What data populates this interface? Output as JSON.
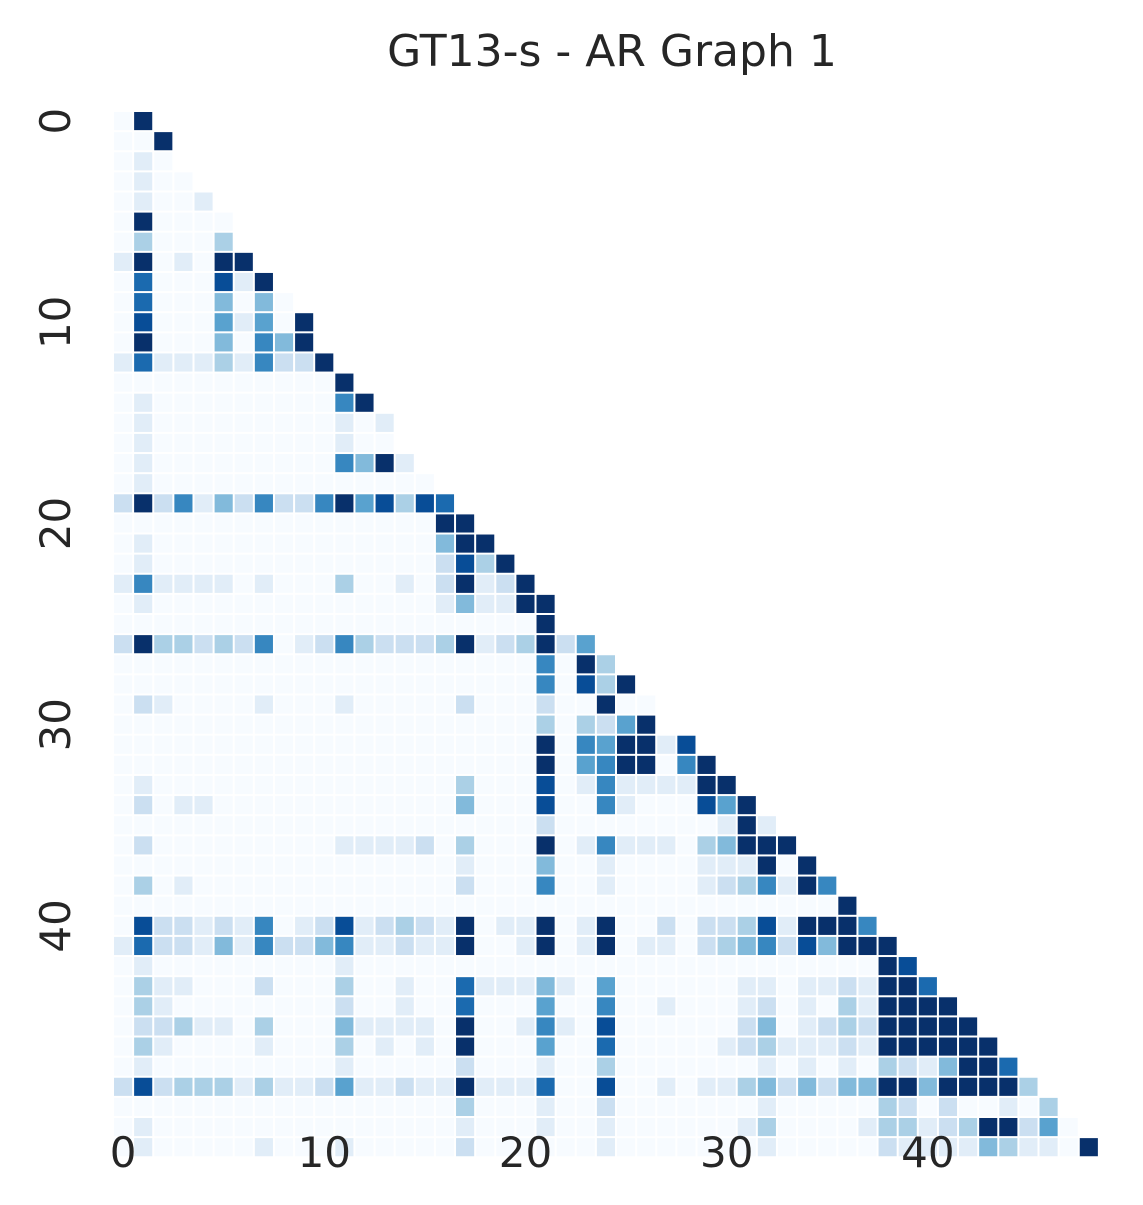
{
  "chart_data": {
    "type": "heatmap",
    "title": "GT13-s - AR Graph 1",
    "xlabel": "",
    "ylabel": "",
    "size": 49,
    "mask": "lower-triangle-including-diagonal",
    "colormap": "Blues",
    "value_range": [
      0,
      1
    ],
    "colorbar": false,
    "x_ticks": [
      0,
      10,
      20,
      30,
      40
    ],
    "y_ticks": [
      0,
      10,
      20,
      30,
      40
    ],
    "rows": [
      [
        0,
        9
      ],
      [
        0,
        0,
        9
      ],
      [
        0,
        1,
        0
      ],
      [
        0,
        1,
        0,
        0
      ],
      [
        0,
        1,
        0,
        0,
        1
      ],
      [
        0,
        9,
        0,
        0,
        0,
        0
      ],
      [
        0,
        3,
        0,
        0,
        0,
        3
      ],
      [
        1,
        9,
        0,
        1,
        0,
        9,
        9
      ],
      [
        0,
        7,
        0,
        0,
        0,
        8,
        1,
        9
      ],
      [
        0,
        7,
        0,
        0,
        0,
        4,
        0,
        4,
        0
      ],
      [
        0,
        8,
        0,
        0,
        0,
        5,
        1,
        5,
        0,
        9
      ],
      [
        0,
        9,
        0,
        0,
        0,
        4,
        0,
        6,
        4,
        9
      ],
      [
        1,
        7,
        1,
        1,
        1,
        3,
        1,
        6,
        2,
        2,
        9
      ],
      [
        0,
        0,
        0,
        0,
        0,
        0,
        0,
        0,
        0,
        0,
        0,
        9
      ],
      [
        0,
        1,
        0,
        0,
        0,
        0,
        0,
        0,
        0,
        0,
        0,
        6,
        9
      ],
      [
        0,
        1,
        0,
        0,
        0,
        0,
        0,
        0,
        0,
        0,
        0,
        1,
        0,
        1
      ],
      [
        0,
        1,
        0,
        0,
        0,
        0,
        0,
        0,
        0,
        0,
        0,
        1,
        0,
        0
      ],
      [
        0,
        1,
        0,
        0,
        0,
        0,
        0,
        0,
        0,
        0,
        0,
        6,
        4,
        9,
        1
      ],
      [
        0,
        1,
        0,
        0,
        0,
        0,
        0,
        0,
        0,
        0,
        0,
        0,
        0,
        0,
        0,
        0
      ],
      [
        2,
        9,
        2,
        6,
        1,
        4,
        2,
        6,
        2,
        2,
        6,
        9,
        5,
        8,
        3,
        8,
        7
      ],
      [
        0,
        0,
        0,
        0,
        0,
        0,
        0,
        0,
        0,
        0,
        0,
        0,
        0,
        0,
        0,
        0,
        9,
        9
      ],
      [
        0,
        1,
        0,
        0,
        0,
        0,
        0,
        0,
        0,
        0,
        0,
        0,
        0,
        0,
        0,
        0,
        4,
        9,
        9
      ],
      [
        0,
        1,
        0,
        0,
        0,
        0,
        0,
        0,
        0,
        0,
        0,
        0,
        0,
        0,
        0,
        0,
        2,
        8,
        3,
        9
      ],
      [
        1,
        6,
        1,
        1,
        1,
        1,
        0,
        1,
        0,
        0,
        0,
        3,
        0,
        0,
        1,
        0,
        2,
        9,
        1,
        2,
        9
      ],
      [
        0,
        1,
        0,
        0,
        0,
        0,
        0,
        0,
        0,
        0,
        0,
        0,
        0,
        0,
        0,
        0,
        1,
        4,
        1,
        1,
        9,
        9
      ],
      [
        0,
        0,
        0,
        0,
        0,
        0,
        0,
        0,
        0,
        0,
        0,
        0,
        0,
        0,
        0,
        0,
        0,
        0,
        0,
        0,
        0,
        9
      ],
      [
        2,
        9,
        3,
        3,
        2,
        3,
        2,
        6,
        0,
        1,
        2,
        6,
        3,
        2,
        2,
        2,
        3,
        9,
        1,
        2,
        3,
        9,
        2,
        5
      ],
      [
        0,
        0,
        0,
        0,
        0,
        0,
        0,
        0,
        0,
        0,
        0,
        0,
        0,
        0,
        0,
        0,
        0,
        0,
        0,
        0,
        0,
        6,
        0,
        9,
        3
      ],
      [
        0,
        0,
        0,
        0,
        0,
        0,
        0,
        0,
        0,
        0,
        0,
        0,
        0,
        0,
        0,
        0,
        0,
        0,
        0,
        0,
        0,
        6,
        0,
        8,
        3,
        9
      ],
      [
        0,
        2,
        1,
        0,
        0,
        0,
        0,
        1,
        0,
        0,
        0,
        1,
        0,
        0,
        0,
        0,
        0,
        2,
        0,
        0,
        0,
        2,
        0,
        0,
        9,
        0,
        0
      ],
      [
        0,
        0,
        0,
        0,
        0,
        0,
        0,
        0,
        0,
        0,
        0,
        0,
        0,
        0,
        0,
        0,
        0,
        0,
        0,
        0,
        0,
        3,
        0,
        3,
        2,
        5,
        9
      ],
      [
        0,
        0,
        0,
        0,
        0,
        0,
        0,
        0,
        0,
        0,
        0,
        0,
        0,
        0,
        0,
        0,
        0,
        0,
        0,
        0,
        0,
        9,
        0,
        6,
        5,
        9,
        9,
        1,
        8
      ],
      [
        0,
        0,
        0,
        0,
        0,
        0,
        0,
        0,
        0,
        0,
        0,
        0,
        0,
        0,
        0,
        0,
        0,
        0,
        0,
        0,
        0,
        9,
        0,
        5,
        6,
        9,
        9,
        0,
        6,
        9
      ],
      [
        0,
        1,
        0,
        0,
        0,
        0,
        0,
        0,
        0,
        0,
        0,
        0,
        0,
        0,
        0,
        0,
        0,
        3,
        0,
        0,
        0,
        8,
        0,
        1,
        6,
        1,
        1,
        1,
        1,
        9,
        9
      ],
      [
        0,
        2,
        0,
        1,
        1,
        0,
        0,
        0,
        0,
        0,
        0,
        0,
        0,
        0,
        0,
        0,
        0,
        4,
        0,
        0,
        0,
        8,
        0,
        0,
        6,
        1,
        0,
        0,
        0,
        8,
        5,
        9
      ],
      [
        0,
        0,
        0,
        0,
        0,
        0,
        0,
        0,
        0,
        0,
        0,
        0,
        0,
        0,
        0,
        0,
        0,
        0,
        0,
        0,
        0,
        2,
        0,
        0,
        0,
        0,
        0,
        0,
        0,
        0,
        1,
        9,
        1
      ],
      [
        0,
        2,
        0,
        0,
        0,
        0,
        0,
        0,
        0,
        0,
        0,
        1,
        1,
        1,
        1,
        2,
        0,
        3,
        0,
        0,
        0,
        9,
        0,
        1,
        6,
        1,
        1,
        1,
        0,
        3,
        4,
        9,
        9,
        9
      ],
      [
        0,
        0,
        0,
        0,
        0,
        0,
        0,
        0,
        0,
        0,
        0,
        0,
        0,
        0,
        0,
        0,
        0,
        1,
        0,
        0,
        0,
        4,
        0,
        0,
        1,
        0,
        0,
        0,
        0,
        1,
        1,
        1,
        9,
        0,
        9
      ],
      [
        0,
        3,
        0,
        1,
        0,
        0,
        0,
        0,
        0,
        0,
        0,
        0,
        0,
        0,
        0,
        0,
        0,
        2,
        0,
        0,
        0,
        6,
        0,
        0,
        1,
        0,
        0,
        0,
        0,
        1,
        2,
        3,
        6,
        1,
        9,
        6
      ],
      [
        0,
        0,
        0,
        0,
        0,
        0,
        0,
        0,
        0,
        0,
        0,
        0,
        0,
        0,
        0,
        0,
        0,
        0,
        0,
        0,
        0,
        0,
        0,
        0,
        0,
        0,
        0,
        0,
        0,
        0,
        0,
        0,
        0,
        0,
        0,
        0,
        9
      ],
      [
        0,
        8,
        2,
        2,
        1,
        2,
        1,
        6,
        0,
        1,
        2,
        8,
        1,
        2,
        3,
        2,
        1,
        9,
        0,
        1,
        1,
        9,
        0,
        1,
        9,
        0,
        0,
        2,
        0,
        2,
        2,
        3,
        8,
        1,
        9,
        9,
        9,
        6
      ],
      [
        1,
        7,
        2,
        2,
        1,
        4,
        1,
        6,
        2,
        2,
        4,
        6,
        1,
        1,
        2,
        1,
        1,
        9,
        0,
        0,
        1,
        9,
        0,
        1,
        9,
        0,
        1,
        1,
        0,
        2,
        3,
        4,
        6,
        2,
        8,
        4,
        9,
        9,
        9
      ],
      [
        0,
        1,
        0,
        0,
        0,
        0,
        0,
        0,
        0,
        0,
        0,
        1,
        0,
        0,
        0,
        0,
        0,
        0,
        0,
        0,
        0,
        0,
        0,
        0,
        0,
        0,
        0,
        0,
        0,
        0,
        0,
        0,
        0,
        0,
        0,
        0,
        0,
        0,
        9,
        8
      ],
      [
        0,
        3,
        1,
        1,
        0,
        0,
        0,
        2,
        0,
        0,
        0,
        3,
        0,
        0,
        1,
        0,
        0,
        7,
        1,
        1,
        1,
        4,
        1,
        0,
        5,
        0,
        0,
        0,
        0,
        0,
        0,
        1,
        1,
        0,
        1,
        1,
        2,
        1,
        9,
        9,
        7
      ],
      [
        0,
        3,
        1,
        0,
        0,
        0,
        0,
        0,
        0,
        0,
        0,
        2,
        0,
        0,
        1,
        0,
        0,
        7,
        0,
        0,
        0,
        5,
        0,
        0,
        6,
        0,
        0,
        1,
        0,
        0,
        0,
        1,
        2,
        0,
        1,
        0,
        3,
        1,
        9,
        9,
        9,
        9
      ],
      [
        0,
        2,
        2,
        3,
        1,
        1,
        0,
        3,
        0,
        0,
        0,
        4,
        1,
        1,
        1,
        1,
        0,
        9,
        0,
        0,
        1,
        6,
        1,
        0,
        8,
        0,
        0,
        0,
        0,
        0,
        0,
        2,
        4,
        0,
        1,
        2,
        3,
        2,
        9,
        9,
        9,
        9,
        9
      ],
      [
        0,
        3,
        1,
        0,
        0,
        0,
        0,
        1,
        0,
        0,
        0,
        3,
        0,
        1,
        0,
        1,
        0,
        9,
        0,
        0,
        0,
        5,
        0,
        0,
        7,
        0,
        0,
        0,
        0,
        0,
        1,
        2,
        3,
        1,
        1,
        1,
        2,
        1,
        9,
        9,
        9,
        9,
        9,
        9
      ],
      [
        0,
        1,
        0,
        0,
        0,
        0,
        0,
        0,
        0,
        0,
        0,
        1,
        0,
        0,
        0,
        0,
        0,
        2,
        0,
        0,
        0,
        1,
        0,
        0,
        3,
        0,
        0,
        0,
        0,
        0,
        0,
        0,
        1,
        0,
        1,
        0,
        1,
        0,
        3,
        2,
        1,
        4,
        9,
        9,
        7
      ],
      [
        2,
        8,
        2,
        3,
        3,
        3,
        1,
        3,
        1,
        1,
        2,
        5,
        1,
        1,
        2,
        1,
        1,
        9,
        1,
        1,
        1,
        7,
        0,
        0,
        8,
        0,
        0,
        1,
        0,
        1,
        1,
        3,
        4,
        2,
        4,
        2,
        4,
        4,
        9,
        9,
        4,
        9,
        9,
        9,
        9,
        3
      ],
      [
        0,
        0,
        0,
        0,
        0,
        0,
        0,
        0,
        0,
        0,
        0,
        0,
        0,
        0,
        0,
        0,
        0,
        3,
        0,
        0,
        0,
        1,
        0,
        0,
        2,
        0,
        0,
        0,
        0,
        0,
        0,
        0,
        1,
        0,
        0,
        0,
        0,
        0,
        3,
        2,
        0,
        2,
        0,
        0,
        1,
        0,
        3
      ],
      [
        0,
        1,
        0,
        0,
        0,
        0,
        0,
        0,
        0,
        0,
        0,
        0,
        0,
        0,
        0,
        0,
        0,
        1,
        0,
        0,
        0,
        1,
        0,
        0,
        1,
        0,
        0,
        0,
        0,
        0,
        0,
        1,
        3,
        0,
        0,
        0,
        0,
        1,
        3,
        3,
        1,
        2,
        3,
        9,
        9,
        2,
        5,
        0
      ],
      [
        0,
        1,
        0,
        0,
        0,
        0,
        0,
        1,
        0,
        0,
        0,
        1,
        0,
        0,
        0,
        0,
        0,
        2,
        0,
        0,
        0,
        0,
        0,
        0,
        1,
        0,
        0,
        0,
        0,
        0,
        0,
        0,
        1,
        0,
        0,
        0,
        0,
        0,
        2,
        1,
        1,
        1,
        1,
        4,
        3,
        1,
        1,
        0,
        9
      ]
    ]
  }
}
